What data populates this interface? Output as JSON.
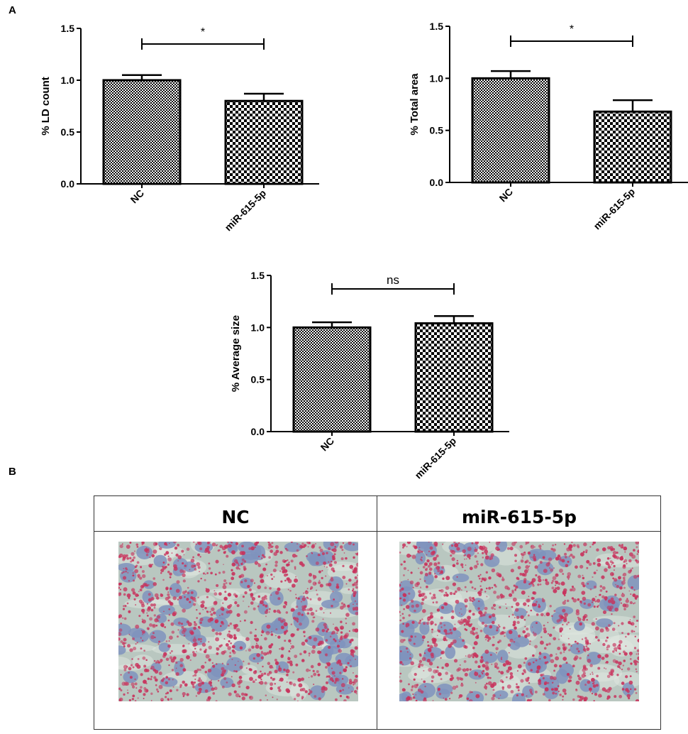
{
  "figure": {
    "panel_a_label": "A",
    "panel_b_label": "B"
  },
  "chart_data": [
    {
      "type": "bar",
      "categories": [
        "NC",
        "miR-615-5p"
      ],
      "values": [
        1.0,
        0.8
      ],
      "errors": [
        0.05,
        0.07
      ],
      "ylabel": "% LD count",
      "ylim": [
        0,
        1.5
      ],
      "yticks": [
        "0.0",
        "0.5",
        "1.0",
        "1.5"
      ],
      "significance": "*",
      "patterns": [
        "fine-checker",
        "coarse-checker"
      ],
      "colors": {
        "bar_stroke": "#000000",
        "pattern_dark": "#000000"
      }
    },
    {
      "type": "bar",
      "categories": [
        "NC",
        "miR-615-5p"
      ],
      "values": [
        1.0,
        0.68
      ],
      "errors": [
        0.07,
        0.11
      ],
      "ylabel": "% Total area",
      "ylim": [
        0,
        1.5
      ],
      "yticks": [
        "0.0",
        "0.5",
        "1.0",
        "1.5"
      ],
      "significance": "*",
      "patterns": [
        "fine-checker",
        "coarse-checker"
      ],
      "colors": {
        "bar_stroke": "#000000",
        "pattern_dark": "#000000"
      }
    },
    {
      "type": "bar",
      "categories": [
        "NC",
        "miR-615-5p"
      ],
      "values": [
        1.0,
        1.04
      ],
      "errors": [
        0.05,
        0.07
      ],
      "ylabel": "% Average size",
      "ylim": [
        0,
        1.5
      ],
      "yticks": [
        "0.0",
        "0.5",
        "1.0",
        "1.5"
      ],
      "significance": "ns",
      "patterns": [
        "fine-checker",
        "coarse-checker"
      ],
      "colors": {
        "bar_stroke": "#000000",
        "pattern_dark": "#000000"
      }
    }
  ],
  "panel_b": {
    "headers": [
      "NC",
      "miR-615-5p"
    ],
    "image_names": [
      "oil-red-o-stain-nc",
      "oil-red-o-stain-mir-615-5p"
    ],
    "colors": {
      "background": "#b9c7c0",
      "nucleus": "#7f93bd",
      "lipid": "#c8325c"
    }
  }
}
